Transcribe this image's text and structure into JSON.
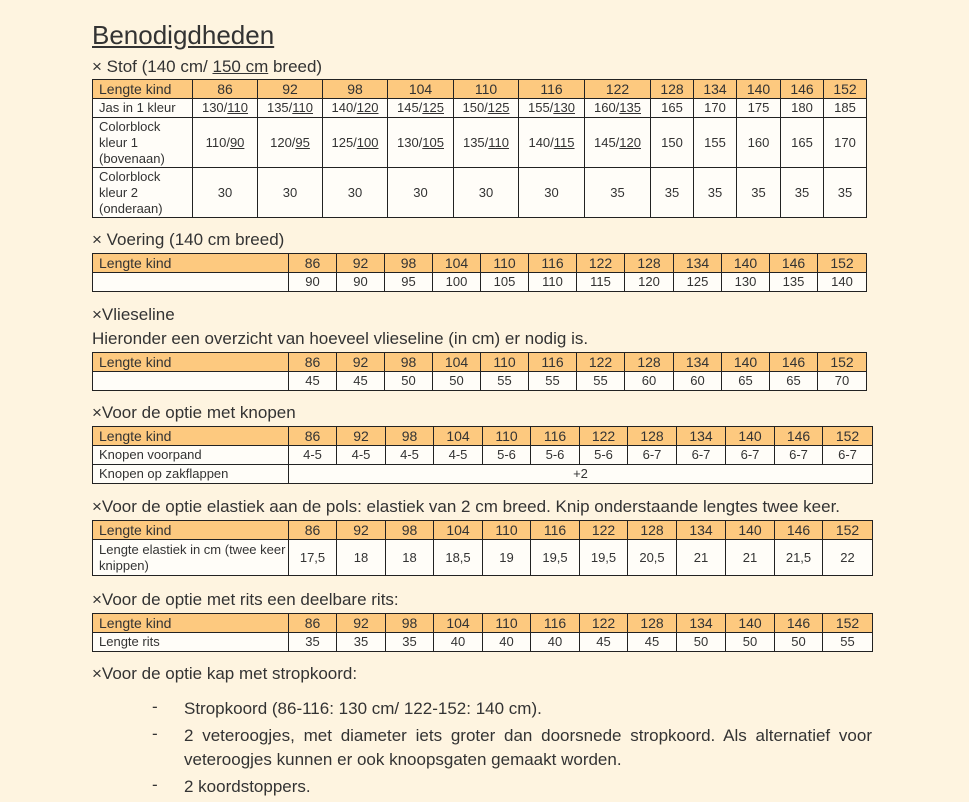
{
  "title": "Benodigdheden",
  "stof": {
    "heading_prefix": "× Stof (140 cm/ ",
    "heading_underlined": "150 cm",
    "heading_suffix": " breed)",
    "header_label": "Lengte kind",
    "sizes": [
      "86",
      "92",
      "98",
      "104",
      "110",
      "116",
      "122",
      "128",
      "134",
      "140",
      "146",
      "152"
    ],
    "rows": [
      {
        "label": "Jas in 1 kleur",
        "values": [
          [
            "130/",
            "110"
          ],
          [
            "135/",
            "110"
          ],
          [
            "140/",
            "120"
          ],
          [
            "145/",
            "125"
          ],
          [
            "150/",
            "125"
          ],
          [
            "155/",
            "130"
          ],
          [
            "160/",
            "135"
          ],
          [
            "165",
            ""
          ],
          [
            "170",
            ""
          ],
          [
            "175",
            ""
          ],
          [
            "180",
            ""
          ],
          [
            "185",
            ""
          ]
        ]
      },
      {
        "label": "Colorblock kleur 1 (bovenaan)",
        "values": [
          [
            "110/",
            "90"
          ],
          [
            "120/",
            "95"
          ],
          [
            "125/",
            "100"
          ],
          [
            "130/",
            "105"
          ],
          [
            "135/",
            "110"
          ],
          [
            "140/",
            "115"
          ],
          [
            "145/",
            "120"
          ],
          [
            "150",
            ""
          ],
          [
            "155",
            ""
          ],
          [
            "160",
            ""
          ],
          [
            "165",
            ""
          ],
          [
            "170",
            ""
          ]
        ]
      },
      {
        "label": "Colorblock kleur 2 (onderaan)",
        "values": [
          [
            "30",
            ""
          ],
          [
            "30",
            ""
          ],
          [
            "30",
            ""
          ],
          [
            "30",
            ""
          ],
          [
            "30",
            ""
          ],
          [
            "30",
            ""
          ],
          [
            "35",
            ""
          ],
          [
            "35",
            ""
          ],
          [
            "35",
            ""
          ],
          [
            "35",
            ""
          ],
          [
            "35",
            ""
          ],
          [
            "35",
            ""
          ]
        ]
      }
    ]
  },
  "voering": {
    "heading": "× Voering (140 cm breed)",
    "header_label": "Lengte kind",
    "sizes": [
      "86",
      "92",
      "98",
      "104",
      "110",
      "116",
      "122",
      "128",
      "134",
      "140",
      "146",
      "152"
    ],
    "values": [
      "90",
      "90",
      "95",
      "100",
      "105",
      "110",
      "115",
      "120",
      "125",
      "130",
      "135",
      "140"
    ]
  },
  "vlieseline": {
    "heading": "×Vlieseline",
    "subtext": "Hieronder een overzicht van hoeveel vlieseline (in cm) er nodig is.",
    "header_label": "Lengte kind",
    "sizes": [
      "86",
      "92",
      "98",
      "104",
      "110",
      "116",
      "122",
      "128",
      "134",
      "140",
      "146",
      "152"
    ],
    "values": [
      "45",
      "45",
      "50",
      "50",
      "55",
      "55",
      "55",
      "60",
      "60",
      "65",
      "65",
      "70"
    ]
  },
  "knopen": {
    "heading": "×Voor de optie met knopen",
    "header_label": "Lengte kind",
    "sizes": [
      "86",
      "92",
      "98",
      "104",
      "110",
      "116",
      "122",
      "128",
      "134",
      "140",
      "146",
      "152"
    ],
    "row1_label": "Knopen voorpand",
    "row1_values": [
      "4-5",
      "4-5",
      "4-5",
      "4-5",
      "5-6",
      "5-6",
      "5-6",
      "6-7",
      "6-7",
      "6-7",
      "6-7",
      "6-7"
    ],
    "row2_label": "Knopen op zakflappen",
    "row2_value": "+2"
  },
  "elastiek": {
    "heading": "×Voor de optie elastiek aan de pols: elastiek van 2 cm breed. Knip onderstaande lengtes twee keer.",
    "header_label": "Lengte kind",
    "sizes": [
      "86",
      "92",
      "98",
      "104",
      "110",
      "116",
      "122",
      "128",
      "134",
      "140",
      "146",
      "152"
    ],
    "row_label": "Lengte elastiek in cm (twee keer knippen)",
    "values": [
      "17,5",
      "18",
      "18",
      "18,5",
      "19",
      "19,5",
      "19,5",
      "20,5",
      "21",
      "21",
      "21,5",
      "22"
    ]
  },
  "rits": {
    "heading": "×Voor de optie met rits een deelbare rits:",
    "header_label": "Lengte kind",
    "sizes": [
      "86",
      "92",
      "98",
      "104",
      "110",
      "116",
      "122",
      "128",
      "134",
      "140",
      "146",
      "152"
    ],
    "row_label": "Lengte rits",
    "values": [
      "35",
      "35",
      "35",
      "40",
      "40",
      "40",
      "45",
      "45",
      "50",
      "50",
      "50",
      "55"
    ]
  },
  "kap": {
    "heading": "×Voor de optie kap met stropkoord:",
    "bullet_dash": "-",
    "bullets": [
      "Stropkoord (86-116: 130 cm/ 122-152: 140 cm).",
      "2 veteroogjes, met diameter iets groter dan doorsnede stropkoord. Als alternatief voor veteroogjes kunnen er ook knoopsgaten gemaakt worden.",
      "2 koordstoppers."
    ]
  }
}
